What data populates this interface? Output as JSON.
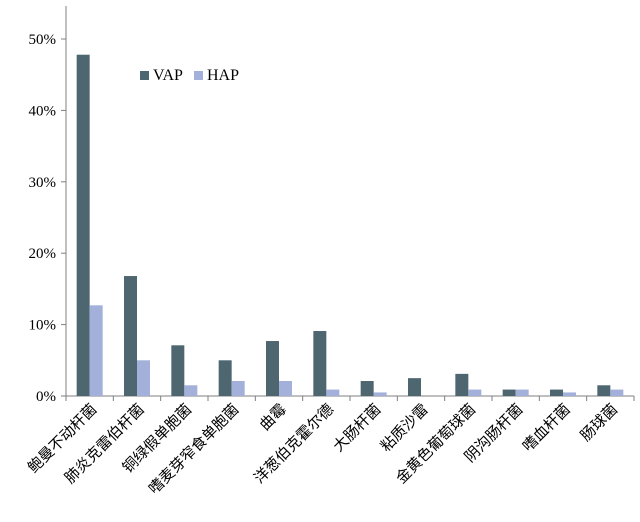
{
  "chart_data": {
    "type": "bar",
    "categories": [
      "鲍曼不动杆菌",
      "肺炎克雷伯杆菌",
      "铜绿假单胞菌",
      "嗜麦芽窄食单胞菌",
      "曲霉",
      "洋葱伯克霍尔德",
      "大肠杆菌",
      "粘质沙雷",
      "金黄色葡萄球菌",
      "阴沟肠杆菌",
      "嗜血杆菌",
      "肠球菌"
    ],
    "series": [
      {
        "name": "VAP",
        "color": "#4e6670",
        "values": [
          47.8,
          16.8,
          7.1,
          5.0,
          7.7,
          9.1,
          2.1,
          2.5,
          3.1,
          0.9,
          0.9,
          1.5
        ]
      },
      {
        "name": "HAP",
        "color": "#a3b0da",
        "values": [
          12.7,
          5.0,
          1.5,
          2.1,
          2.1,
          0.9,
          0.5,
          0.0,
          0.9,
          0.9,
          0.5,
          0.9
        ]
      }
    ],
    "yticks": [
      "0%",
      "10%",
      "20%",
      "30%",
      "40%",
      "50%"
    ],
    "ylim": [
      0,
      50
    ],
    "legend_position": "top-left",
    "title": "",
    "xlabel": "",
    "ylabel": ""
  }
}
